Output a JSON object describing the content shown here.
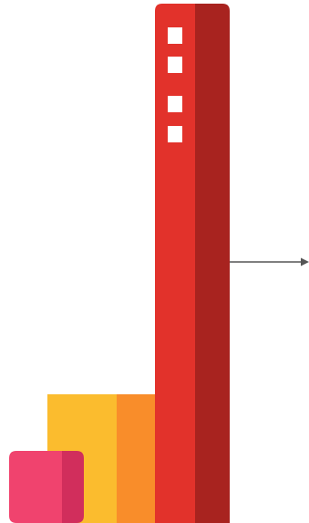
{
  "illustration": {
    "colors": {
      "tower_front": "#E2322B",
      "tower_side": "#A8231F",
      "middle_block_front": "#FBBC2E",
      "middle_block_side": "#F98D2A",
      "small_block_front": "#F0436E",
      "small_block_side": "#D12E5C",
      "windows": "#FFFFFF",
      "arrow": "#555555"
    },
    "icons": [
      "tall-tower-block",
      "middle-block",
      "small-block",
      "arrow-right-icon"
    ]
  }
}
